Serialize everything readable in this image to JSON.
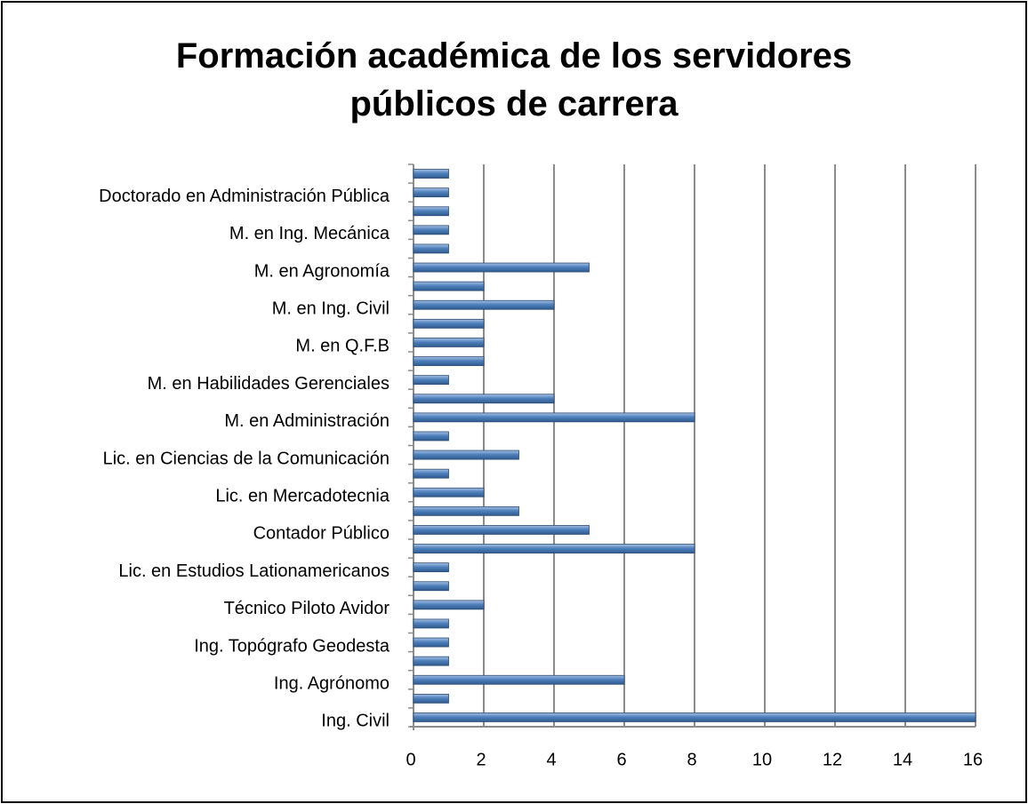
{
  "chart_data": {
    "type": "bar",
    "orientation": "horizontal",
    "title": "Formación académica de los servidores públicos de carrera",
    "categories": [
      "Ing. Civil",
      null,
      "Ing. Agrónomo",
      null,
      "Ing. Topógrafo Geodesta",
      null,
      "Técnico Piloto Avidor",
      null,
      "Lic. en Estudios Lationamericanos",
      null,
      "Contador Público",
      null,
      "Lic. en Mercadotecnia",
      null,
      "Lic. en Ciencias de la Comunicación",
      null,
      "M. en Administración",
      null,
      "M. en Habilidades Gerenciales",
      null,
      "M. en Q.F.B",
      null,
      "M. en Ing. Civil",
      null,
      "M. en Agronomía",
      null,
      "M. en Ing. Mecánica",
      null,
      "Doctorado en Administración Pública",
      null
    ],
    "values": [
      16,
      1,
      6,
      1,
      1,
      1,
      2,
      1,
      1,
      8,
      5,
      3,
      2,
      1,
      3,
      1,
      8,
      4,
      1,
      2,
      2,
      2,
      4,
      2,
      5,
      1,
      1,
      1,
      1,
      1
    ],
    "color": "#4f81bd",
    "xlim": [
      0,
      16
    ],
    "xticks": [
      0,
      2,
      4,
      6,
      8,
      10,
      12,
      14,
      16
    ],
    "grid": true
  }
}
